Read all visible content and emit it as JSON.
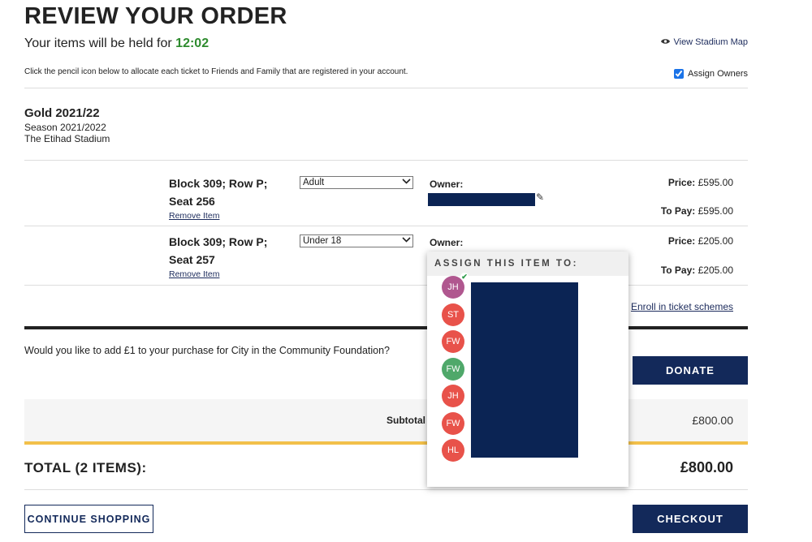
{
  "header": {
    "title": "REVIEW YOUR ORDER",
    "hold_prefix": "Your items will be held for ",
    "timer": "12:02",
    "view_map": "View Stadium Map",
    "instructions": "Click the pencil icon below to allocate each ticket to Friends and Family that are registered in your account.",
    "assign_owners_label": "Assign Owners",
    "assign_owners_checked": true
  },
  "product": {
    "name": "Gold 2021/22",
    "season": "Season 2021/2022",
    "venue": "The Etihad Stadium"
  },
  "items": [
    {
      "seat_line1": "Block 309; Row P;",
      "seat_line2": "Seat 256",
      "remove": "Remove Item",
      "ticket_type": "Adult",
      "owner_label": "Owner:",
      "price_label": "Price:",
      "price": "£595.00",
      "to_pay_label": "To Pay:",
      "to_pay": "£595.00"
    },
    {
      "seat_line1": "Block 309; Row P;",
      "seat_line2": "Seat 257",
      "remove": "Remove Item",
      "ticket_type": "Under 18",
      "owner_label": "Owner:",
      "price_label": "Price:",
      "price": "£205.00",
      "to_pay_label": "To Pay:",
      "to_pay": "£205.00"
    }
  ],
  "enroll": "Enroll in ticket schemes",
  "donation": {
    "question": "Would you like to add £1 to your purchase for City in the Community Foundation?",
    "button": "DONATE"
  },
  "summary": {
    "subtotal_label": "Subtotal",
    "subtotal": "£800.00",
    "total_label": "TOTAL (2 ITEMS):",
    "total": "£800.00"
  },
  "actions": {
    "continue": "CONTINUE SHOPPING",
    "checkout": "CHECKOUT"
  },
  "assign_popup": {
    "heading": "ASSIGN THIS ITEM TO:",
    "people": [
      {
        "initials": "JH",
        "color": "#b0578f",
        "selected": true
      },
      {
        "initials": "ST",
        "color": "#e8524a",
        "selected": false
      },
      {
        "initials": "FW",
        "color": "#e8524a",
        "selected": false
      },
      {
        "initials": "FW",
        "color": "#4fa86a",
        "selected": false
      },
      {
        "initials": "JH",
        "color": "#e8524a",
        "selected": false
      },
      {
        "initials": "FW",
        "color": "#e8524a",
        "selected": false
      },
      {
        "initials": "HL",
        "color": "#e8524a",
        "selected": false
      }
    ]
  },
  "colors": {
    "navy": "#13295a",
    "timer_green": "#2e8b2e",
    "accent_yellow": "#f2c04a",
    "redaction": "#0b2454"
  }
}
